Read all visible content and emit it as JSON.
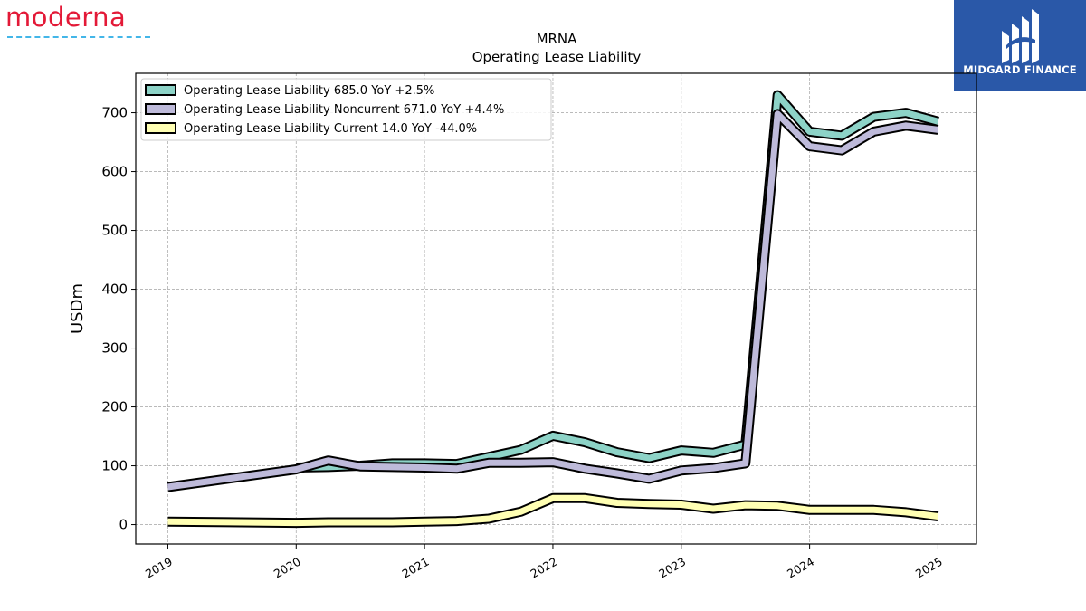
{
  "brand": {
    "name": "moderna"
  },
  "badge": {
    "name": "MIDGARD FINANCE"
  },
  "chart_data": {
    "type": "line",
    "title": "MRNA",
    "subtitle": "Operating Lease Liability",
    "xlabel": "",
    "ylabel": "USDm",
    "ylim": [
      -33,
      767
    ],
    "yticks": [
      0,
      100,
      200,
      300,
      400,
      500,
      600,
      700
    ],
    "xlim": [
      2018.75,
      2025.3
    ],
    "xticks": [
      "2019",
      "2020",
      "2021",
      "2022",
      "2023",
      "2024",
      "2025"
    ],
    "grid": true,
    "legend": "upper-left",
    "series": [
      {
        "name": "Operating Lease Liability  685.0 YoY +2.5%",
        "color": "#8dd3c7",
        "x": [
          2020.0,
          2020.25,
          2020.5,
          2020.75,
          2021.0,
          2021.25,
          2021.5,
          2021.75,
          2022.0,
          2022.25,
          2022.5,
          2022.75,
          2023.0,
          2023.25,
          2023.5,
          2023.75,
          2024.0,
          2024.25,
          2024.5,
          2024.75,
          2025.0
        ],
        "values": [
          97,
          98,
          100,
          104,
          104,
          103,
          115,
          127,
          151,
          140,
          123,
          113,
          126,
          122,
          136,
          730,
          668,
          661,
          693,
          700,
          685
        ]
      },
      {
        "name": "Operating Lease Liability Noncurrent  671.0 YoY +4.4%",
        "color": "#bebada",
        "x": [
          2019.0,
          2020.0,
          2020.25,
          2020.5,
          2020.75,
          2021.0,
          2021.25,
          2021.5,
          2021.75,
          2022.0,
          2022.25,
          2022.5,
          2022.75,
          2023.0,
          2023.25,
          2023.5,
          2023.75,
          2024.0,
          2024.25,
          2024.5,
          2024.75,
          2025.0
        ],
        "values": [
          64,
          94,
          109,
          99,
          98,
          97,
          95,
          105,
          105,
          106,
          95,
          87,
          78,
          92,
          96,
          104,
          698,
          643,
          636,
          668,
          678,
          671
        ]
      },
      {
        "name": "Operating Lease Liability Current  14.0 YoY -44.0%",
        "color": "#ffffb3",
        "x": [
          2019.0,
          2020.0,
          2020.25,
          2020.5,
          2020.75,
          2021.0,
          2021.25,
          2021.5,
          2021.75,
          2022.0,
          2022.25,
          2022.5,
          2022.75,
          2023.0,
          2023.25,
          2023.5,
          2023.75,
          2024.0,
          2024.25,
          2024.5,
          2024.75,
          2025.0
        ],
        "values": [
          5,
          3,
          4,
          4,
          4,
          5,
          6,
          10,
          22,
          45,
          45,
          37,
          35,
          34,
          27,
          33,
          32,
          25,
          25,
          25,
          21,
          14
        ]
      }
    ]
  }
}
